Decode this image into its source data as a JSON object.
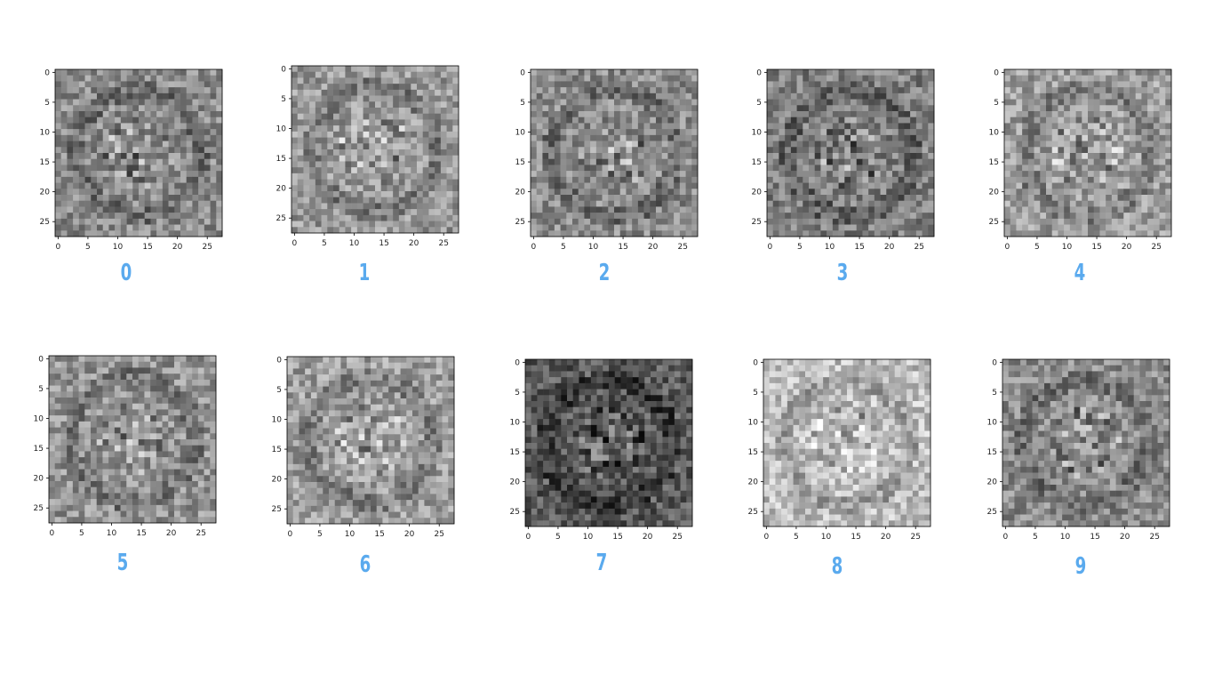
{
  "chart_data": [
    {
      "type": "heatmap",
      "label": "0",
      "xticks": [
        0,
        5,
        10,
        15,
        20,
        25
      ],
      "yticks": [
        0,
        5,
        10,
        15,
        20,
        25
      ],
      "xlim": [
        0,
        27
      ],
      "ylim": [
        0,
        27
      ],
      "colormap": "gray",
      "grid": false
    },
    {
      "type": "heatmap",
      "label": "1",
      "xticks": [
        0,
        5,
        10,
        15,
        20,
        25
      ],
      "yticks": [
        0,
        5,
        10,
        15,
        20,
        25
      ],
      "xlim": [
        0,
        27
      ],
      "ylim": [
        0,
        27
      ],
      "colormap": "gray",
      "grid": false
    },
    {
      "type": "heatmap",
      "label": "2",
      "xticks": [
        0,
        5,
        10,
        15,
        20,
        25
      ],
      "yticks": [
        0,
        5,
        10,
        15,
        20,
        25
      ],
      "xlim": [
        0,
        27
      ],
      "ylim": [
        0,
        27
      ],
      "colormap": "gray",
      "grid": false
    },
    {
      "type": "heatmap",
      "label": "3",
      "xticks": [
        0,
        5,
        10,
        15,
        20,
        25
      ],
      "yticks": [
        0,
        5,
        10,
        15,
        20,
        25
      ],
      "xlim": [
        0,
        27
      ],
      "ylim": [
        0,
        27
      ],
      "colormap": "gray",
      "grid": false
    },
    {
      "type": "heatmap",
      "label": "4",
      "xticks": [
        0,
        5,
        10,
        15,
        20,
        25
      ],
      "yticks": [
        0,
        5,
        10,
        15,
        20,
        25
      ],
      "xlim": [
        0,
        27
      ],
      "ylim": [
        0,
        27
      ],
      "colormap": "gray",
      "grid": false
    },
    {
      "type": "heatmap",
      "label": "5",
      "xticks": [
        0,
        5,
        10,
        15,
        20,
        25
      ],
      "yticks": [
        0,
        5,
        10,
        15,
        20,
        25
      ],
      "xlim": [
        0,
        27
      ],
      "ylim": [
        0,
        27
      ],
      "colormap": "gray",
      "grid": false
    },
    {
      "type": "heatmap",
      "label": "6",
      "xticks": [
        0,
        5,
        10,
        15,
        20,
        25
      ],
      "yticks": [
        0,
        5,
        10,
        15,
        20,
        25
      ],
      "xlim": [
        0,
        27
      ],
      "ylim": [
        0,
        27
      ],
      "colormap": "gray",
      "grid": false
    },
    {
      "type": "heatmap",
      "label": "7",
      "xticks": [
        0,
        5,
        10,
        15,
        20,
        25
      ],
      "yticks": [
        0,
        5,
        10,
        15,
        20,
        25
      ],
      "xlim": [
        0,
        27
      ],
      "ylim": [
        0,
        27
      ],
      "colormap": "gray",
      "grid": false
    },
    {
      "type": "heatmap",
      "label": "8",
      "xticks": [
        0,
        5,
        10,
        15,
        20,
        25
      ],
      "yticks": [
        0,
        5,
        10,
        15,
        20,
        25
      ],
      "xlim": [
        0,
        27
      ],
      "ylim": [
        0,
        27
      ],
      "colormap": "gray",
      "grid": false
    },
    {
      "type": "heatmap",
      "label": "9",
      "xticks": [
        0,
        5,
        10,
        15,
        20,
        25
      ],
      "yticks": [
        0,
        5,
        10,
        15,
        20,
        25
      ],
      "xlim": [
        0,
        27
      ],
      "ylim": [
        0,
        27
      ],
      "colormap": "gray",
      "grid": false
    }
  ],
  "style": {
    "label_color": "#5aaaee"
  }
}
